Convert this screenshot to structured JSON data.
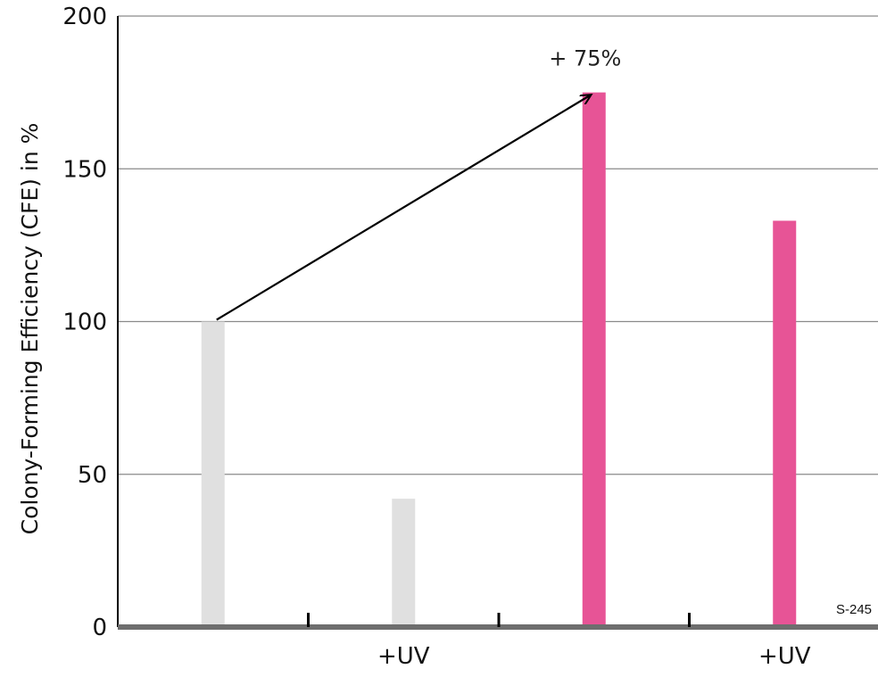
{
  "chart_data": {
    "type": "bar",
    "categories": [
      "",
      "+UV",
      "",
      "+UV"
    ],
    "values": [
      100,
      42,
      175,
      133
    ],
    "bar_colors": [
      "#e0e0e0",
      "#e0e0e0",
      "#e75496",
      "#e75496"
    ],
    "ylabel": "Colony-Forming Efficiency (CFE) in %",
    "xlabel": "",
    "ylim": [
      0,
      200
    ],
    "yticks": [
      0,
      50,
      100,
      150,
      200
    ],
    "grid": true,
    "annotation": {
      "text": "+ 75%",
      "from_category": 0,
      "to_category": 2
    },
    "code_label": "S-245"
  }
}
